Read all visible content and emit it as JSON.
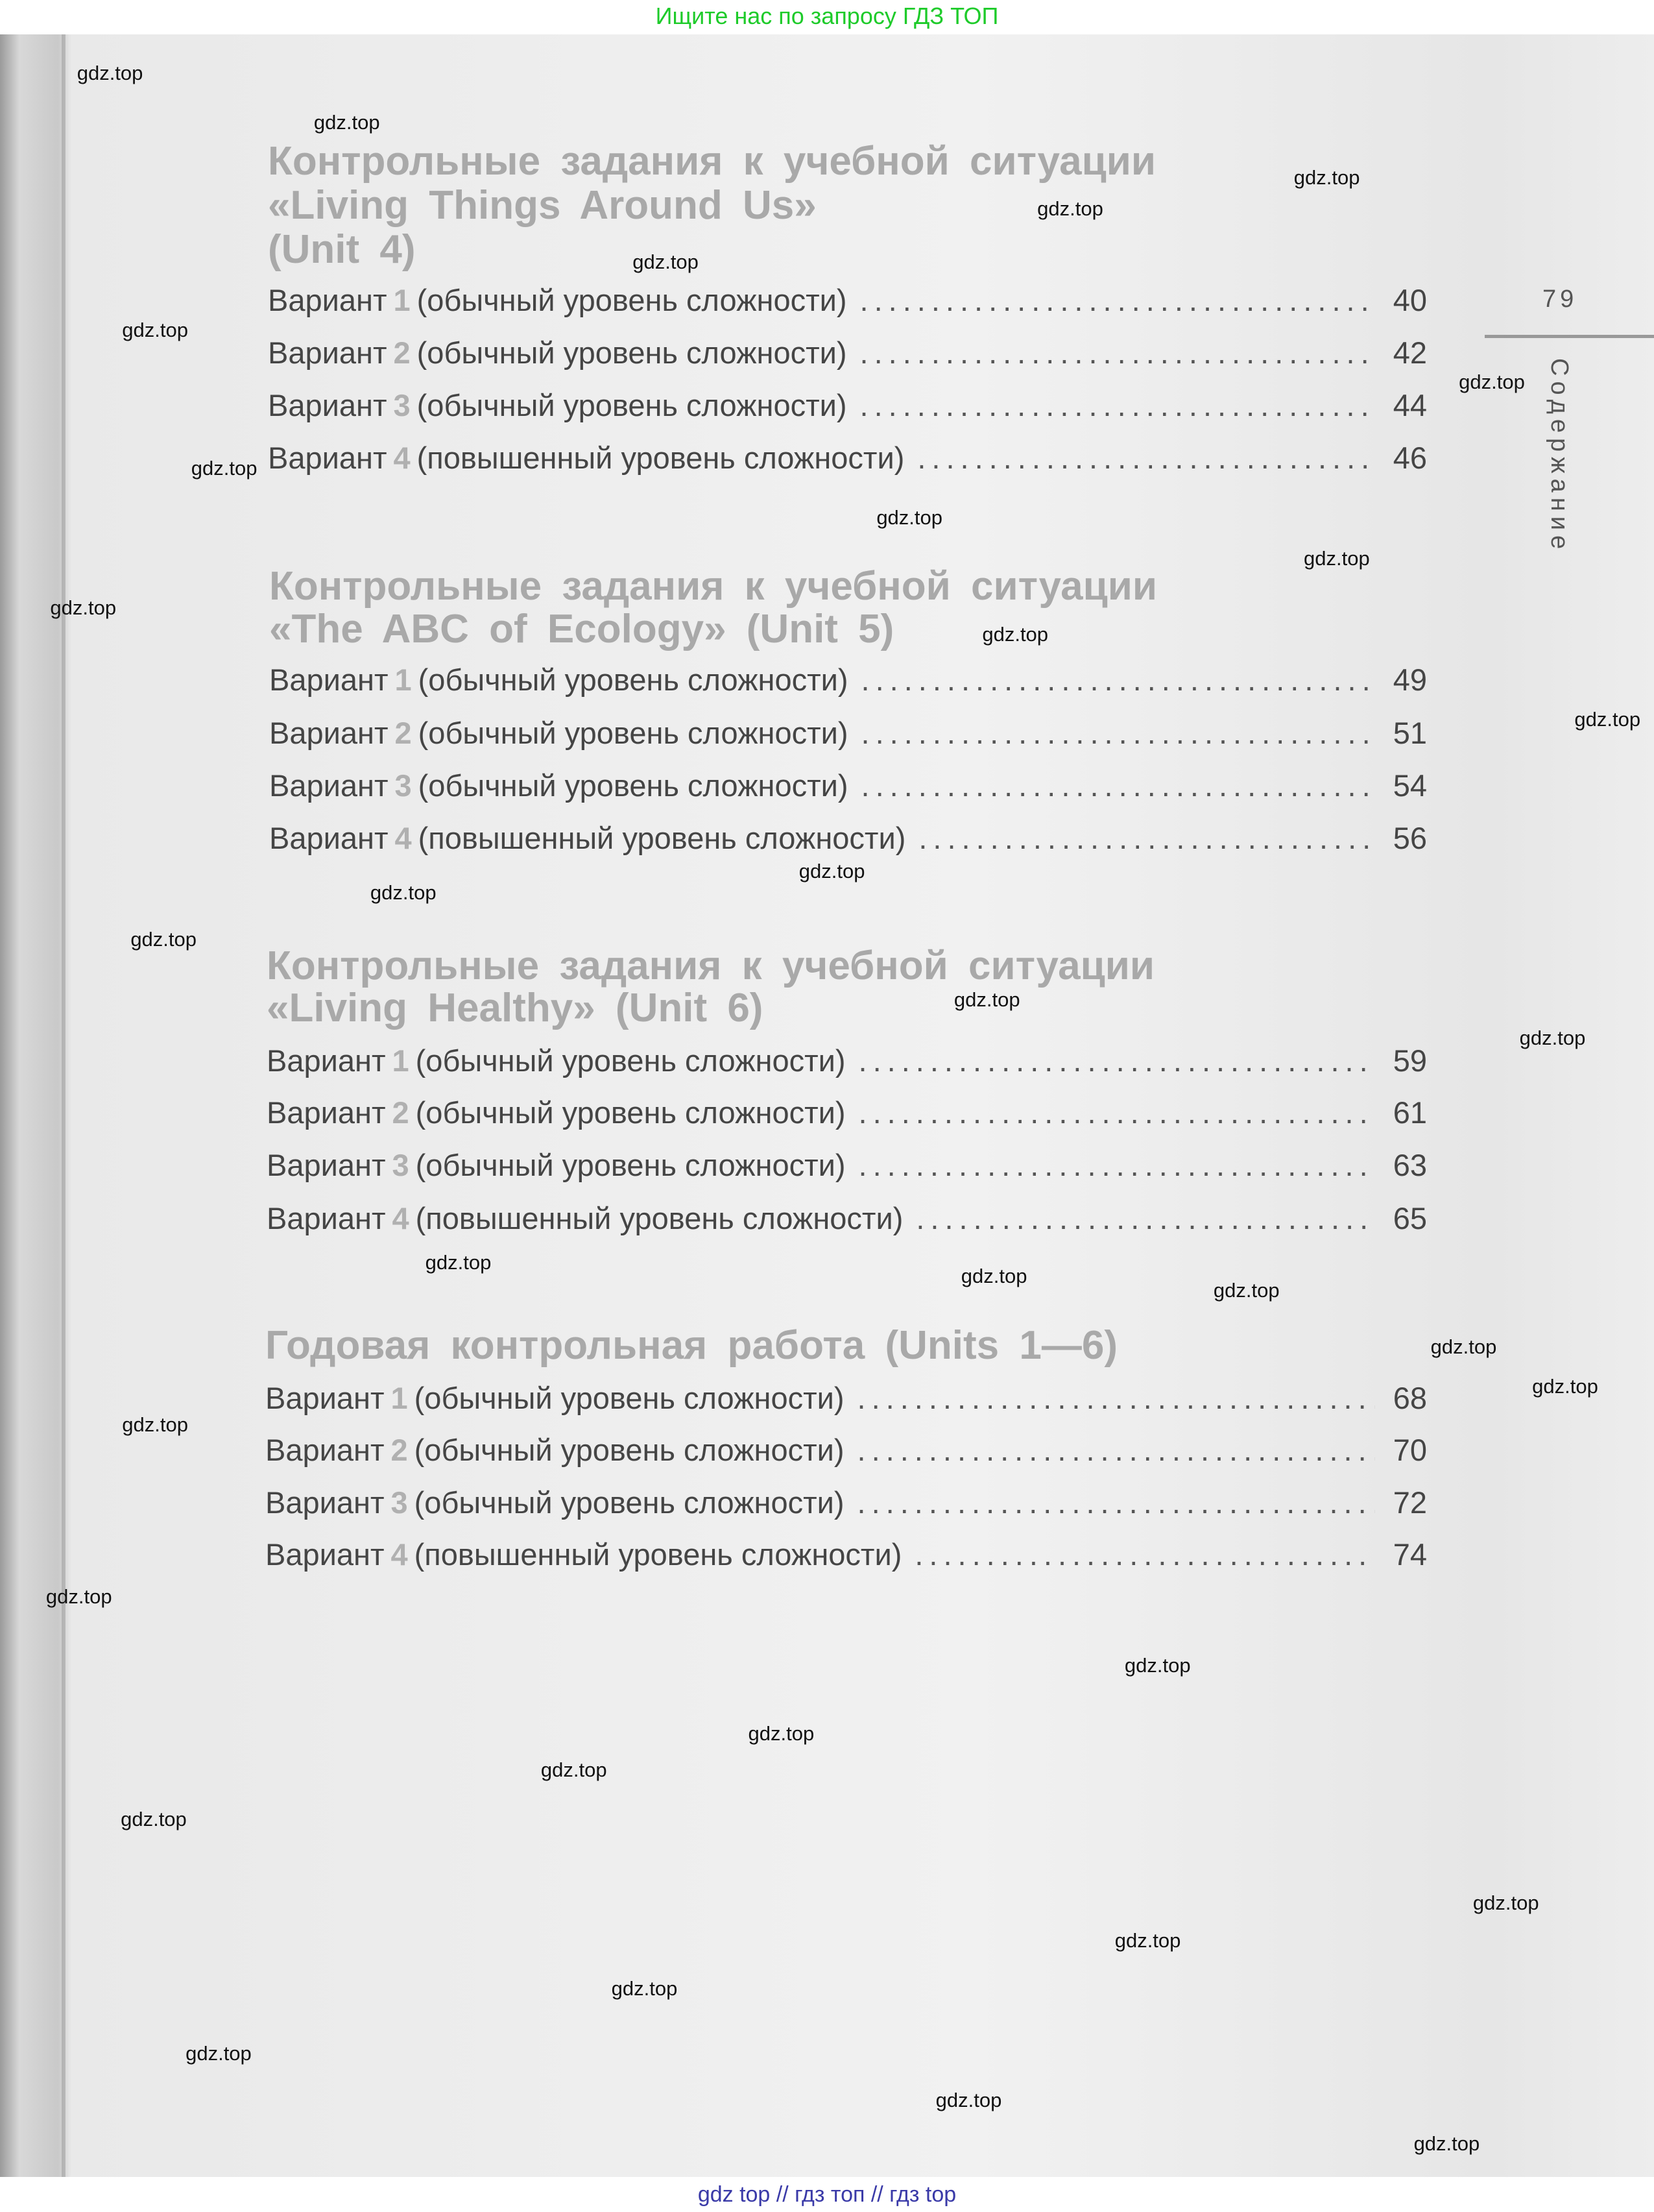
{
  "top_banner": "Ищите нас по запросу ГДЗ ТОП",
  "bottom_banner": "gdz top  //  гдз топ  //  гдз top",
  "page_number": "79",
  "section_label": "Содержание",
  "watermark_text": "gdz.top",
  "sections": [
    {
      "heading_lines": [
        "Контрольные задания к учебной ситуации",
        "«Living Things Around Us»",
        "(Unit 4)"
      ],
      "entries": [
        {
          "prefix": "Вариант",
          "num": "1",
          "text": "(обычный уровень сложности)",
          "page": "40"
        },
        {
          "prefix": "Вариант",
          "num": "2",
          "text": "(обычный уровень сложности)",
          "page": "42"
        },
        {
          "prefix": "Вариант",
          "num": "3",
          "text": "(обычный уровень сложности)",
          "page": "44"
        },
        {
          "prefix": "Вариант",
          "num": "4",
          "text": "(повышенный уровень сложности)",
          "page": "46"
        }
      ]
    },
    {
      "heading_lines": [
        "Контрольные задания к учебной ситуации",
        "«The ABC of Ecology» (Unit 5)"
      ],
      "entries": [
        {
          "prefix": "Вариант",
          "num": "1",
          "text": "(обычный уровень сложности)",
          "page": "49"
        },
        {
          "prefix": "Вариант",
          "num": "2",
          "text": "(обычный уровень сложности)",
          "page": "51"
        },
        {
          "prefix": "Вариант",
          "num": "3",
          "text": "(обычный уровень сложности)",
          "page": "54"
        },
        {
          "prefix": "Вариант",
          "num": "4",
          "text": "(повышенный уровень сложности)",
          "page": "56"
        }
      ]
    },
    {
      "heading_lines": [
        "Контрольные задания к учебной ситуации",
        "«Living Healthy» (Unit 6)"
      ],
      "entries": [
        {
          "prefix": "Вариант",
          "num": "1",
          "text": "(обычный уровень сложности)",
          "page": "59"
        },
        {
          "prefix": "Вариант",
          "num": "2",
          "text": "(обычный уровень сложности)",
          "page": "61"
        },
        {
          "prefix": "Вариант",
          "num": "3",
          "text": "(обычный уровень сложности)",
          "page": "63"
        },
        {
          "prefix": "Вариант",
          "num": "4",
          "text": "(повышенный уровень сложности)",
          "page": "65"
        }
      ]
    },
    {
      "heading_lines": [
        "Годовая контрольная работа (Units 1—6)"
      ],
      "entries": [
        {
          "prefix": "Вариант",
          "num": "1",
          "text": "(обычный уровень сложности)",
          "page": "68"
        },
        {
          "prefix": "Вариант",
          "num": "2",
          "text": "(обычный уровень сложности)",
          "page": "70"
        },
        {
          "prefix": "Вариант",
          "num": "3",
          "text": "(обычный уровень сложности)",
          "page": "72"
        },
        {
          "prefix": "Вариант",
          "num": "4",
          "text": "(повышенный уровень сложности)",
          "page": "74"
        }
      ]
    }
  ]
}
